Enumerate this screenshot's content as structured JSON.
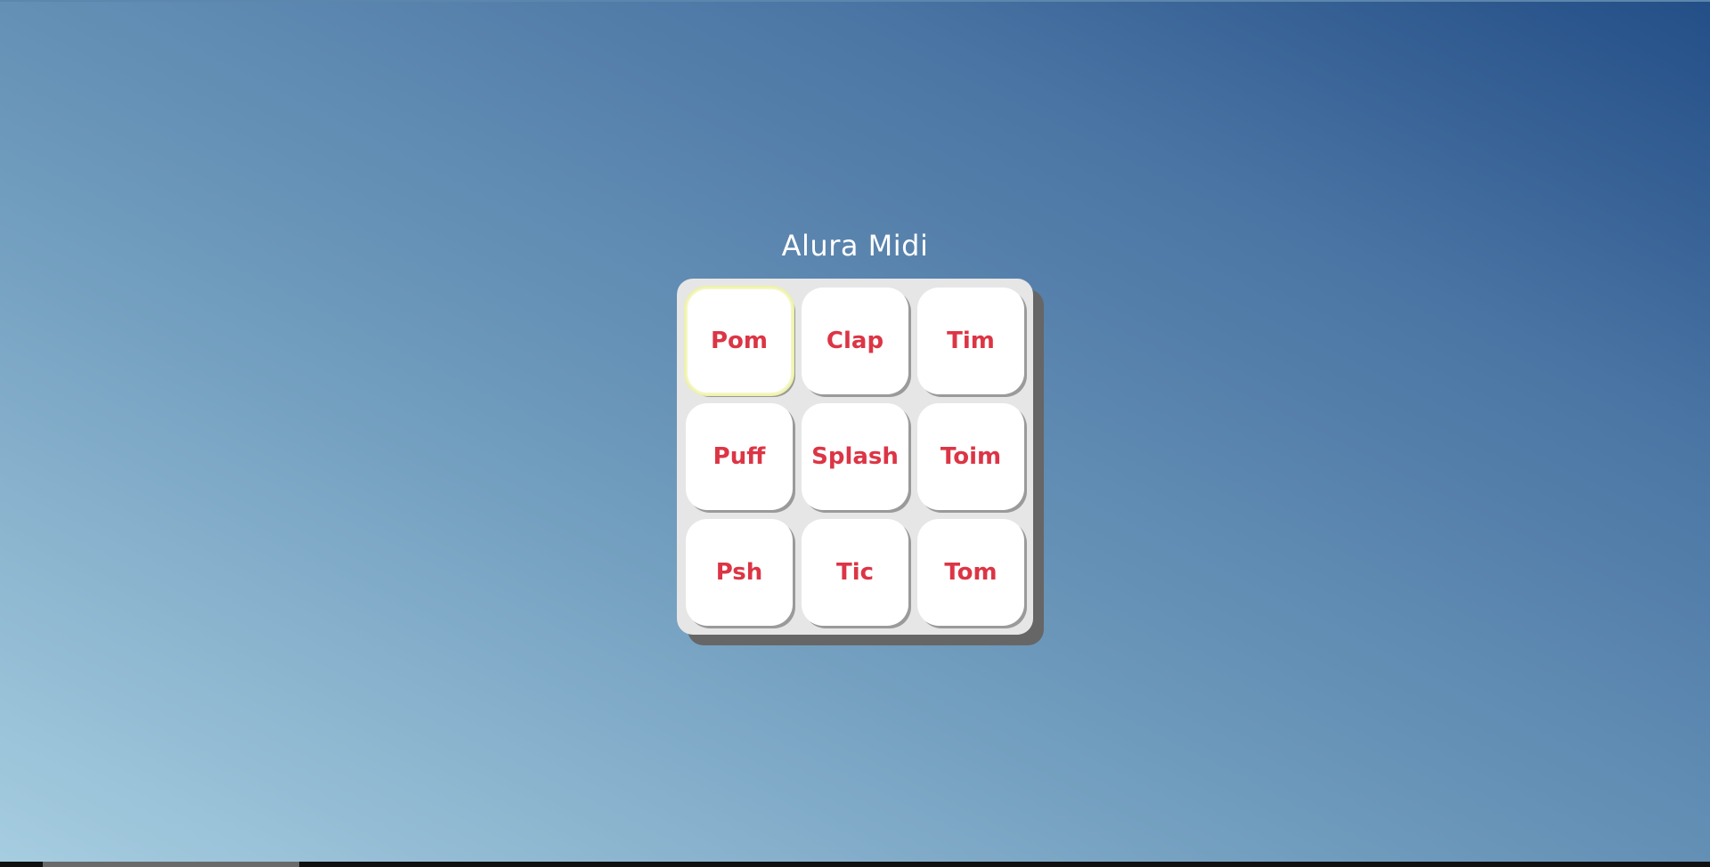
{
  "page": {
    "title": "Alura Midi"
  },
  "keys": [
    {
      "label": "Pom",
      "focused": true
    },
    {
      "label": "Clap",
      "focused": false
    },
    {
      "label": "Tim",
      "focused": false
    },
    {
      "label": "Puff",
      "focused": false
    },
    {
      "label": "Splash",
      "focused": false
    },
    {
      "label": "Toim",
      "focused": false
    },
    {
      "label": "Psh",
      "focused": false
    },
    {
      "label": "Tic",
      "focused": false
    },
    {
      "label": "Tom",
      "focused": false
    }
  ],
  "colors": {
    "key_text": "#dc3545",
    "key_bg": "#ffffff",
    "pad_bg": "#e6e6e6",
    "pad_shadow": "#666666",
    "title_text": "#ffffff",
    "focus_ring": "#eef2a8"
  }
}
